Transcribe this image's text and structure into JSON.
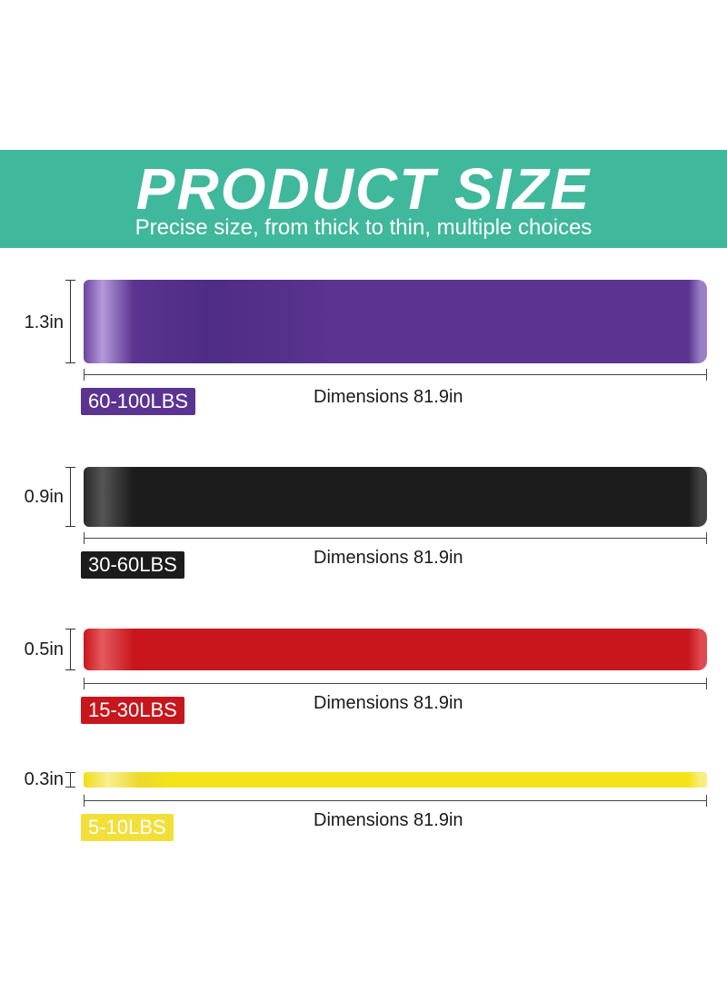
{
  "header": {
    "title": "PRODUCT SIZE",
    "subtitle": "Precise size, from thick to thin, multiple choices",
    "color": "#3fb89b"
  },
  "bands": [
    {
      "width_label": "1.3in",
      "resistance": "60-100LBS",
      "length_label": "Dimensions 81.9in",
      "color": "#5a3490"
    },
    {
      "width_label": "0.9in",
      "resistance": "30-60LBS",
      "length_label": "Dimensions 81.9in",
      "color": "#1c1c1c"
    },
    {
      "width_label": "0.5in",
      "resistance": "15-30LBS",
      "length_label": "Dimensions 81.9in",
      "color": "#c8161d"
    },
    {
      "width_label": "0.3in",
      "resistance": "5-10LBS",
      "length_label": "Dimensions 81.9in",
      "color": "#f5e31a"
    }
  ]
}
